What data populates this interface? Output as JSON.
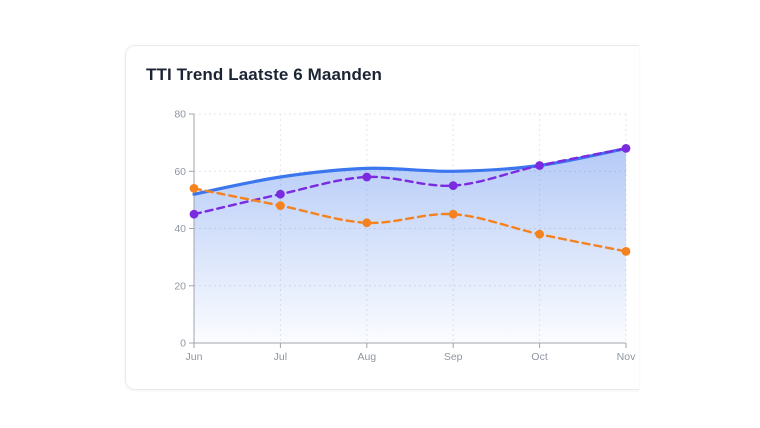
{
  "card": {
    "title": "TTI Trend Laatste 6 Maanden"
  },
  "chart_data": {
    "type": "line",
    "title": "TTI Trend Laatste 6 Maanden",
    "xlabel": "",
    "ylabel": "",
    "categories": [
      "Jun",
      "Jul",
      "Aug",
      "Sep",
      "Oct",
      "Nov"
    ],
    "series": [
      {
        "name": "blue-area-line",
        "values": [
          52,
          58,
          61,
          60,
          62,
          68
        ],
        "color": "#3b76ee",
        "line_style": "solid",
        "line_width": 3.2,
        "area_fill": true,
        "point_markers": false
      },
      {
        "name": "purple-dashed-line",
        "values": [
          45,
          52,
          58,
          55,
          62,
          68
        ],
        "color": "#7a2be0",
        "line_style": "dashed",
        "line_width": 2.4,
        "area_fill": false,
        "point_markers": true
      },
      {
        "name": "orange-dashed-line",
        "values": [
          54,
          48,
          42,
          45,
          38,
          32
        ],
        "color": "#f5811f",
        "line_style": "dashed",
        "line_width": 2.4,
        "area_fill": false,
        "point_markers": true
      }
    ],
    "ylim": [
      0,
      80
    ],
    "yticks": [
      0,
      20,
      40,
      60,
      80
    ],
    "grid": true,
    "legend": "none",
    "colors": {
      "axis": "#9fa4ad",
      "grid": "#e3e5ea",
      "tick_label": "#8f95a1",
      "area_gradient_top": "rgba(59,116,235,0.38)",
      "area_gradient_bottom": "rgba(59,116,235,0.02)"
    }
  }
}
